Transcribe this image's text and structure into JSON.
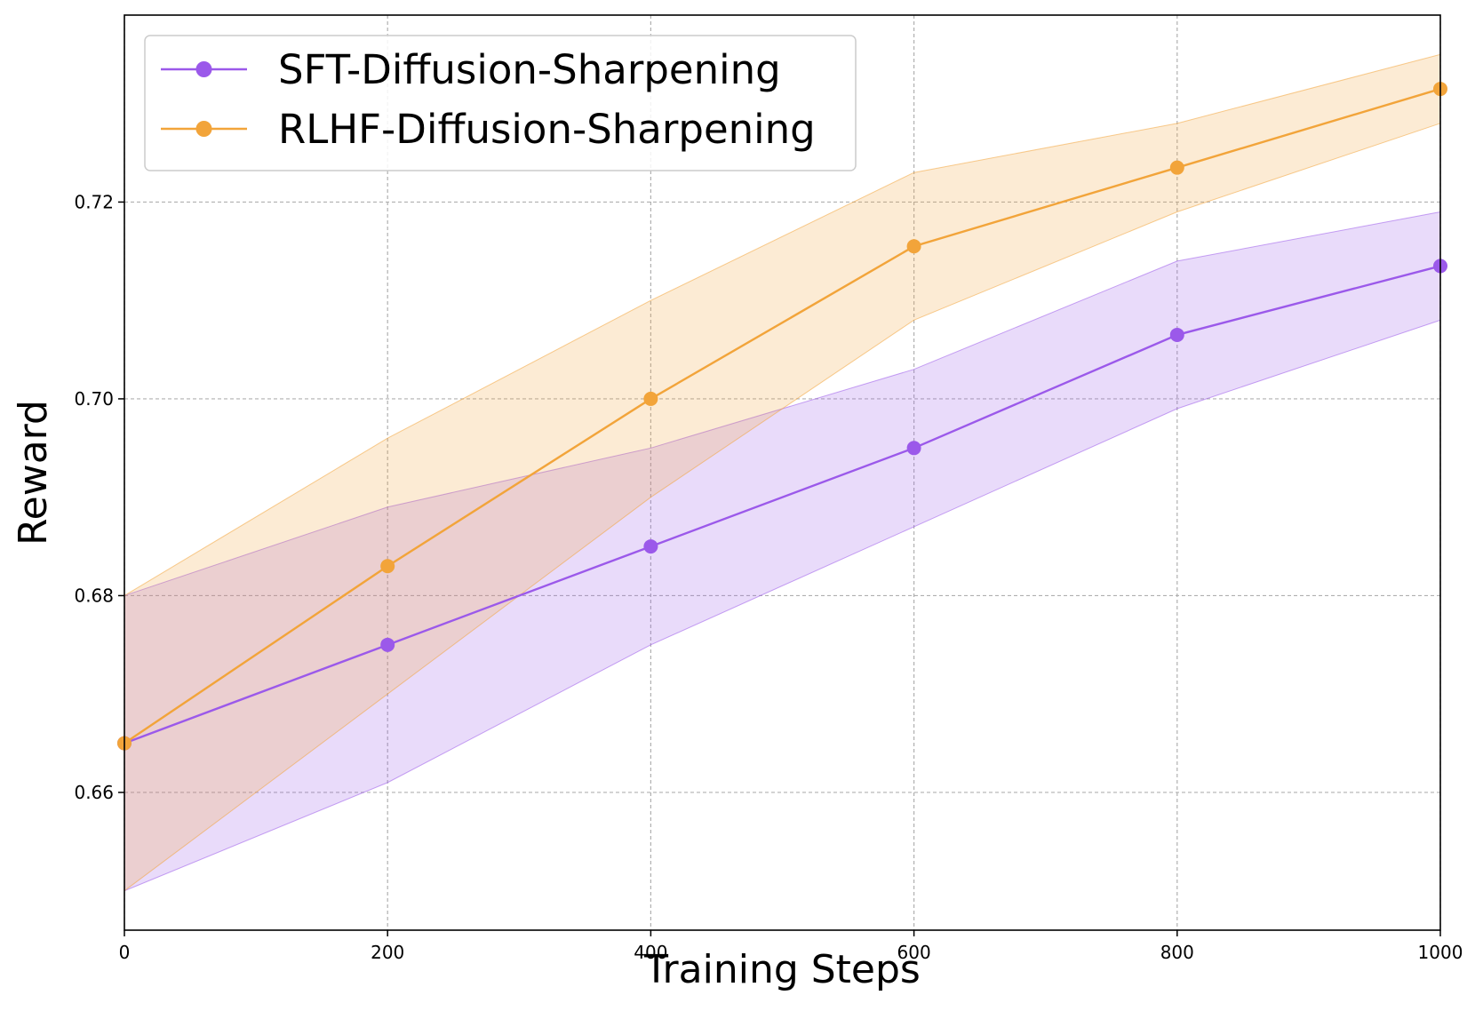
{
  "chart_data": {
    "type": "line",
    "title": "",
    "xlabel": "Training Steps",
    "ylabel": "Reward",
    "x": [
      0,
      200,
      400,
      600,
      800,
      1000
    ],
    "xlim": [
      0,
      1000
    ],
    "ylim": [
      0.646,
      0.739
    ],
    "xticks": [
      0,
      200,
      400,
      600,
      800,
      1000
    ],
    "yticks": [
      0.66,
      0.68,
      0.7,
      0.72
    ],
    "xtick_labels": [
      "0",
      "200",
      "400",
      "600",
      "800",
      "1000"
    ],
    "ytick_labels": [
      "0.66",
      "0.68",
      "0.70",
      "0.72"
    ],
    "grid": true,
    "legend_position": "top-left",
    "series": [
      {
        "name": "SFT-Diffusion-Sharpening",
        "color": "#9b59ea",
        "values": [
          0.665,
          0.675,
          0.685,
          0.695,
          0.7065,
          0.7135
        ],
        "lower": [
          0.65,
          0.661,
          0.675,
          0.687,
          0.699,
          0.708
        ],
        "upper": [
          0.68,
          0.689,
          0.695,
          0.703,
          0.714,
          0.719
        ]
      },
      {
        "name": "RLHF-Diffusion-Sharpening",
        "color": "#f2a43a",
        "values": [
          0.665,
          0.683,
          0.7,
          0.7155,
          0.7235,
          0.7315
        ],
        "lower": [
          0.65,
          0.67,
          0.69,
          0.708,
          0.719,
          0.728
        ],
        "upper": [
          0.68,
          0.696,
          0.71,
          0.723,
          0.728,
          0.735
        ]
      }
    ]
  }
}
